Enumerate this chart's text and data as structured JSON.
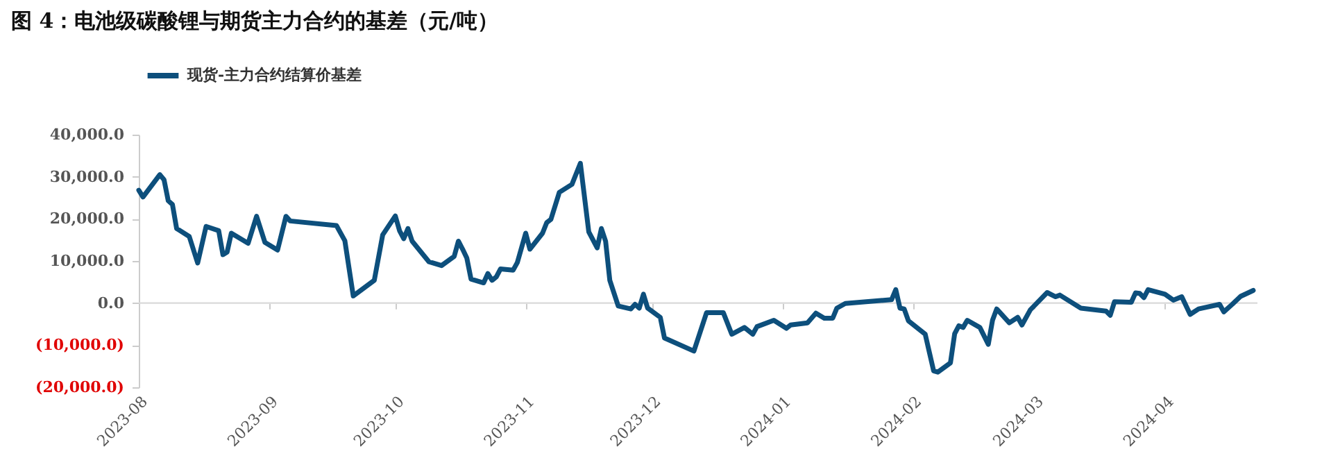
{
  "chart_data": {
    "type": "line",
    "title": "图 4：电池级碳酸锂与期货主力合约的基差（元/吨）",
    "x": [
      "2023-08-01",
      "2023-08-02",
      "2023-08-06",
      "2023-08-07",
      "2023-08-08",
      "2023-08-09",
      "2023-08-10",
      "2023-08-13",
      "2023-08-15",
      "2023-08-17",
      "2023-08-20",
      "2023-08-21",
      "2023-08-22",
      "2023-08-23",
      "2023-08-27",
      "2023-08-29",
      "2023-08-31",
      "2023-09-03",
      "2023-09-05",
      "2023-09-06",
      "2023-09-17",
      "2023-09-19",
      "2023-09-21",
      "2023-09-26",
      "2023-09-28",
      "2023-10-01",
      "2023-10-02",
      "2023-10-03",
      "2023-10-04",
      "2023-10-05",
      "2023-10-09",
      "2023-10-12",
      "2023-10-15",
      "2023-10-16",
      "2023-10-17",
      "2023-10-18",
      "2023-10-19",
      "2023-10-22",
      "2023-10-23",
      "2023-10-24",
      "2023-10-25",
      "2023-10-26",
      "2023-10-29",
      "2023-10-30",
      "2023-11-01",
      "2023-11-02",
      "2023-11-05",
      "2023-11-06",
      "2023-11-07",
      "2023-11-09",
      "2023-11-12",
      "2023-11-14",
      "2023-11-16",
      "2023-11-18",
      "2023-11-19",
      "2023-11-20",
      "2023-11-21",
      "2023-11-23",
      "2023-11-26",
      "2023-11-27",
      "2023-11-28",
      "2023-11-29",
      "2023-11-30",
      "2023-12-03",
      "2023-12-04",
      "2023-12-11",
      "2023-12-14",
      "2023-12-18",
      "2023-12-20",
      "2023-12-23",
      "2023-12-25",
      "2023-12-26",
      "2023-12-30",
      "2024-01-02",
      "2024-01-03",
      "2024-01-07",
      "2024-01-09",
      "2024-01-11",
      "2024-01-13",
      "2024-01-14",
      "2024-01-16",
      "2024-01-27",
      "2024-01-28",
      "2024-01-29",
      "2024-01-30",
      "2024-01-31",
      "2024-02-04",
      "2024-02-06",
      "2024-02-07",
      "2024-02-10",
      "2024-02-11",
      "2024-02-12",
      "2024-02-13",
      "2024-02-14",
      "2024-02-17",
      "2024-02-19",
      "2024-02-20",
      "2024-02-21",
      "2024-02-24",
      "2024-02-26",
      "2024-02-27",
      "2024-02-29",
      "2024-03-04",
      "2024-03-06",
      "2024-03-07",
      "2024-03-12",
      "2024-03-18",
      "2024-03-19",
      "2024-03-20",
      "2024-03-24",
      "2024-03-25",
      "2024-03-26",
      "2024-03-27",
      "2024-03-28",
      "2024-04-01",
      "2024-04-03",
      "2024-04-05",
      "2024-04-07",
      "2024-04-09",
      "2024-04-14",
      "2024-04-15",
      "2024-04-17",
      "2024-04-19",
      "2024-04-22"
    ],
    "series": [
      {
        "name": "现货-主力合约结算价基差",
        "color": "#0d4f7c",
        "values": [
          26800,
          25200,
          30500,
          29300,
          24300,
          23400,
          17700,
          15800,
          9500,
          18200,
          17200,
          11500,
          12100,
          16600,
          14200,
          20600,
          14400,
          12600,
          20600,
          19500,
          18400,
          14800,
          1700,
          5400,
          16200,
          20700,
          17200,
          15300,
          17700,
          14700,
          9800,
          8900,
          11100,
          14700,
          12800,
          10700,
          5700,
          4800,
          7000,
          5400,
          6200,
          8100,
          7800,
          9600,
          16600,
          12800,
          16600,
          19100,
          19900,
          26300,
          28200,
          33200,
          16900,
          13100,
          17700,
          14700,
          5400,
          -700,
          -1400,
          -300,
          -1200,
          2100,
          -1200,
          -3400,
          -8300,
          -11400,
          -2300,
          -2300,
          -7400,
          -5800,
          -7400,
          -5600,
          -4100,
          -6000,
          -5200,
          -4700,
          -2400,
          -3600,
          -3600,
          -1200,
          -100,
          800,
          3200,
          -1200,
          -1400,
          -4200,
          -7400,
          -16100,
          -16400,
          -14200,
          -7300,
          -5400,
          -5800,
          -4100,
          -5800,
          -9800,
          -4100,
          -1400,
          -4700,
          -3400,
          -5200,
          -1600,
          2500,
          1500,
          1900,
          -1200,
          -1900,
          -2900,
          300,
          200,
          2400,
          2300,
          1300,
          3200,
          2100,
          700,
          1500,
          -2700,
          -1400,
          -300,
          -2100,
          -300,
          1600,
          3000
        ]
      }
    ],
    "xlim": [
      "2023-08-01",
      "2024-04-23"
    ],
    "xticks": [
      "2023-08",
      "2023-09",
      "2023-10",
      "2023-11",
      "2023-12",
      "2024-01",
      "2024-02",
      "2024-03",
      "2024-04"
    ],
    "ylim": [
      -20000,
      40000
    ],
    "yticks": [
      {
        "value": -20000,
        "label": "(20,000.0)"
      },
      {
        "value": -10000,
        "label": "(10,000.0)"
      },
      {
        "value": 0,
        "label": "0.0"
      },
      {
        "value": 10000,
        "label": "10,000.0"
      },
      {
        "value": 20000,
        "label": "20,000.0"
      },
      {
        "value": 30000,
        "label": "30,000.0"
      },
      {
        "value": 40000,
        "label": "40,000.0"
      }
    ],
    "ref_lines": [
      {
        "axis": "y",
        "value": 0,
        "color": "#d9d9d9"
      }
    ],
    "grid": false,
    "legend": "top"
  }
}
